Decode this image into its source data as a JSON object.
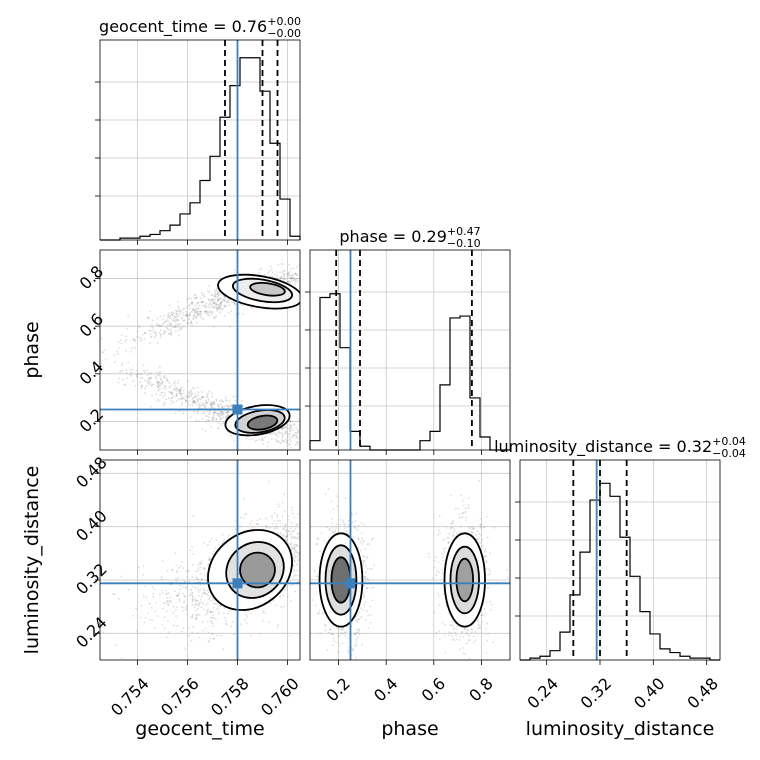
{
  "chart_data": {
    "type": "corner",
    "parameters": [
      {
        "name": "geocent_time",
        "label": "geocent_time",
        "range": [
          0.7525,
          0.7605
        ],
        "ticks": [
          "0.754",
          "0.756",
          "0.758",
          "0.760"
        ],
        "truth": 0.758,
        "median": 0.759,
        "q16": 0.7575,
        "q84": 0.7596,
        "title": {
          "main": "geocent_time = 0.76",
          "sup": "+0.00",
          "sub": "−0.00"
        },
        "hist": [
          0,
          0,
          0.01,
          0.01,
          0.02,
          0.03,
          0.05,
          0.08,
          0.14,
          0.2,
          0.32,
          0.45,
          0.66,
          0.83,
          0.98,
          0.98,
          0.8,
          0.52,
          0.22,
          0.02
        ]
      },
      {
        "name": "phase",
        "label": "phase",
        "range": [
          0.08,
          0.92
        ],
        "ticks": [
          "0.2",
          "0.4",
          "0.6",
          "0.8"
        ],
        "truth": 0.25,
        "median": 0.29,
        "q16": 0.19,
        "q84": 0.76,
        "title": {
          "main": "phase = 0.29",
          "sup": "+0.47",
          "sub": "−0.10"
        },
        "hist": [
          0.05,
          0.82,
          0.84,
          0.55,
          0.1,
          0.02,
          0,
          0,
          0,
          0,
          0,
          0.05,
          0.1,
          0.35,
          0.71,
          0.72,
          0.28,
          0.07,
          0,
          0
        ]
      },
      {
        "name": "luminosity_distance",
        "label": "luminosity_distance",
        "range": [
          0.2,
          0.5
        ],
        "ticks": [
          "0.24",
          "0.32",
          "0.40",
          "0.48"
        ],
        "truth": 0.315,
        "median": 0.32,
        "q16": 0.28,
        "q84": 0.36,
        "title": {
          "main": "luminosity_distance = 0.32",
          "sup": "+0.04",
          "sub": "−0.04"
        },
        "hist": [
          0,
          0.01,
          0.02,
          0.05,
          0.15,
          0.35,
          0.58,
          0.86,
          0.95,
          0.88,
          0.66,
          0.45,
          0.26,
          0.14,
          0.06,
          0.04,
          0.02,
          0.01,
          0.01,
          0
        ]
      }
    ],
    "truth_color": "#3b7fbd",
    "hist_color": "#000000",
    "grid": true
  }
}
